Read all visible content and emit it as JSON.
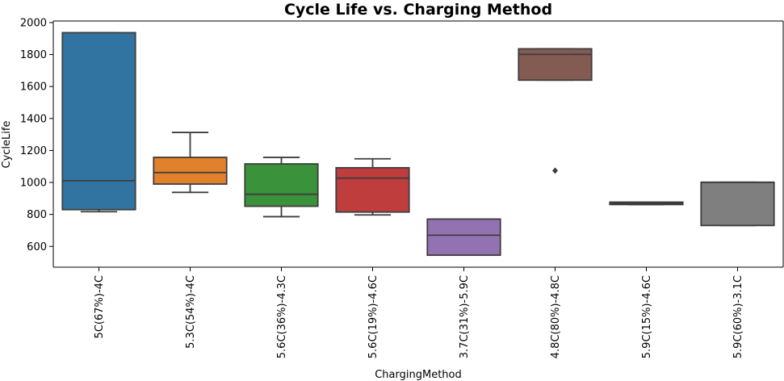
{
  "chart_data": {
    "type": "box",
    "title": "Cycle Life vs.  Charging Method",
    "xlabel": "ChargingMethod",
    "ylabel": "CycleLife",
    "ylim": [
      470,
      2010
    ],
    "yticks": [
      600,
      800,
      1000,
      1200,
      1400,
      1600,
      1800,
      2000
    ],
    "grid": false,
    "categories": [
      "5C(67%)-4C",
      "5.3C(54%)-4C",
      "5.6C(36%)-4.3C",
      "5.6C(19%)-4.6C",
      "3.7C(31%)-5.9C",
      "4.8C(80%)-4.8C",
      "5.9C(15%)-4.6C",
      "5.9C(60%)-3.1C"
    ],
    "boxes": [
      {
        "color": "#3274a1",
        "whisker_low": 817,
        "q1": 830,
        "median": 1011,
        "q3": 1937,
        "whisker_high": 1937,
        "outliers": []
      },
      {
        "color": "#e1812c",
        "whisker_low": 938,
        "q1": 990,
        "median": 1062,
        "q3": 1157,
        "whisker_high": 1313,
        "outliers": []
      },
      {
        "color": "#3a923a",
        "whisker_low": 786,
        "q1": 851,
        "median": 926,
        "q3": 1116,
        "whisker_high": 1157,
        "outliers": []
      },
      {
        "color": "#c03d3e",
        "whisker_low": 797,
        "q1": 815,
        "median": 1027,
        "q3": 1092,
        "whisker_high": 1148,
        "outliers": []
      },
      {
        "color": "#9372b2",
        "whisker_low": 545,
        "q1": 545,
        "median": 670,
        "q3": 771,
        "whisker_high": 771,
        "outliers": []
      },
      {
        "color": "#845b53",
        "whisker_low": 1640,
        "q1": 1640,
        "median": 1801,
        "q3": 1836,
        "whisker_high": 1836,
        "outliers": [
          1074
        ]
      },
      {
        "color": "#d684bd",
        "whisker_low": 862,
        "q1": 862,
        "median": 870,
        "q3": 877,
        "whisker_high": 877,
        "outliers": []
      },
      {
        "color": "#7f7f7f",
        "whisker_low": 731,
        "q1": 731,
        "median": 1001,
        "q3": 1001,
        "whisker_high": 1001,
        "outliers": []
      }
    ]
  }
}
